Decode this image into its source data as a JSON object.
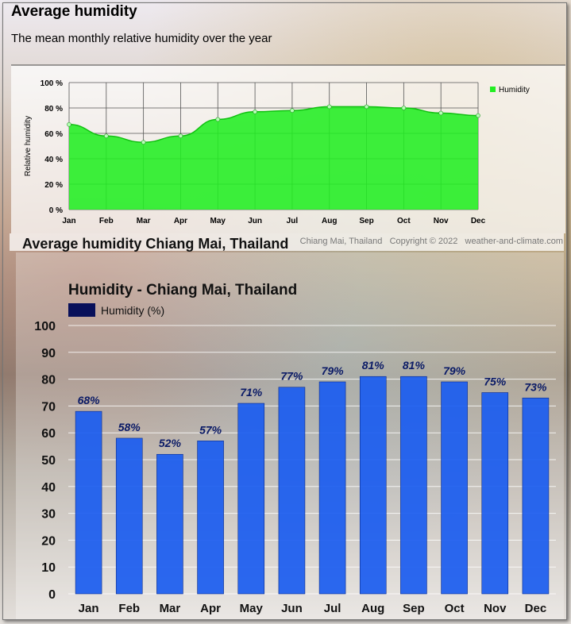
{
  "top": {
    "title": "Average humidity",
    "subtitle": "The mean monthly relative humidity over the year"
  },
  "credit": {
    "place": "Chiang Mai, Thailand",
    "copyright": "Copyright © 2022",
    "site": "weather-and-climate.com"
  },
  "section_title": "Average humidity Chiang Mai, Thailand",
  "chart_data": [
    {
      "type": "area",
      "title": "",
      "xlabel": "",
      "ylabel": "Relative humidity",
      "x": [
        "Jan",
        "Feb",
        "Mar",
        "Apr",
        "May",
        "Jun",
        "Jul",
        "Aug",
        "Sep",
        "Oct",
        "Nov",
        "Dec"
      ],
      "y_ticks": [
        "0 %",
        "20 %",
        "40 %",
        "60 %",
        "80 %",
        "100 %"
      ],
      "ylim": [
        0,
        100
      ],
      "grid": true,
      "legend": "top-right",
      "series": [
        {
          "name": "Humidity",
          "color": "#22ee22",
          "values": [
            67,
            58,
            53,
            58,
            71,
            77,
            78,
            81,
            81,
            80,
            76,
            74
          ]
        }
      ]
    },
    {
      "type": "bar",
      "title": "Humidity - Chiang Mai, Thailand",
      "xlabel": "",
      "ylabel": "",
      "categories": [
        "Jan",
        "Feb",
        "Mar",
        "Apr",
        "May",
        "Jun",
        "Jul",
        "Aug",
        "Sep",
        "Oct",
        "Nov",
        "Dec"
      ],
      "y_ticks": [
        "0",
        "10",
        "20",
        "30",
        "40",
        "50",
        "60",
        "70",
        "80",
        "90",
        "100"
      ],
      "ylim": [
        0,
        100
      ],
      "grid": true,
      "legend": "top-left",
      "series": [
        {
          "name": "Humidity (%)",
          "color": "#1a5cf0",
          "values": [
            68,
            58,
            52,
            57,
            71,
            77,
            79,
            81,
            81,
            79,
            75,
            73
          ],
          "labels": [
            "68%",
            "58%",
            "52%",
            "57%",
            "71%",
            "77%",
            "79%",
            "81%",
            "81%",
            "79%",
            "75%",
            "73%"
          ]
        }
      ]
    }
  ]
}
